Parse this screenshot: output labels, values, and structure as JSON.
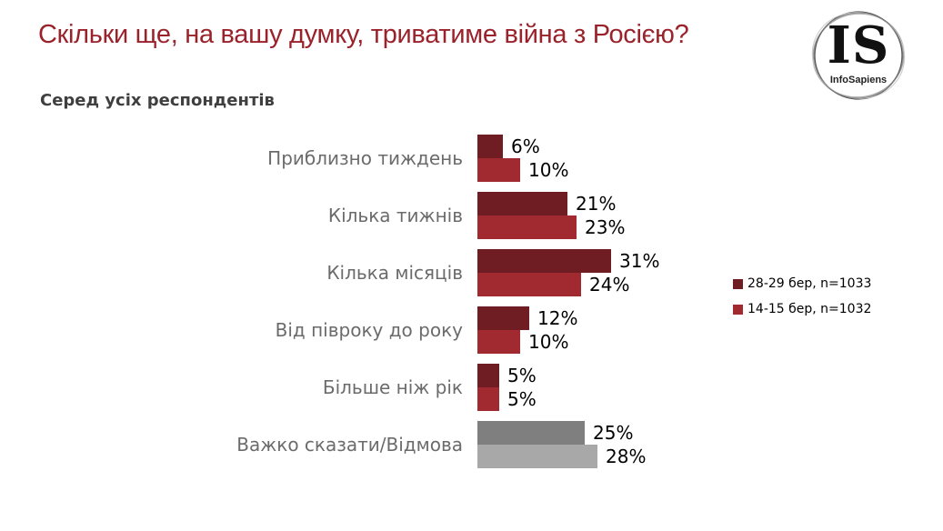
{
  "page": {
    "title": "Скільки ще, на вашу думку, триватиме війна з Росією?",
    "subtitle": "Серед усіх респондентів",
    "background_color": "#FFFFFF",
    "title_color": "#9A222B"
  },
  "logo": {
    "initials": "IS",
    "name": "InfoSapiens"
  },
  "legend": {
    "items": [
      {
        "label": "28-29 бер, n=1033",
        "color": "#701C23"
      },
      {
        "label": "14-15 бер, n=1032",
        "color": "#A02A30"
      }
    ]
  },
  "chart_data": {
    "type": "bar",
    "orientation": "horizontal",
    "title": "Скільки ще, на вашу думку, триватиме війна з Росією?",
    "subtitle": "Серед усіх респондентів",
    "value_suffix": "%",
    "grid": false,
    "legend_position": "right",
    "xlim": [
      0,
      35
    ],
    "categories": [
      "Приблизно тиждень",
      "Кілька тижнів",
      "Кілька місяців",
      "Від півроку до року",
      "Більше ніж рік",
      "Важко сказати/Відмова"
    ],
    "series": [
      {
        "name": "28-29 бер, n=1033",
        "color": "#701C23",
        "values": [
          6,
          21,
          31,
          12,
          5,
          25
        ]
      },
      {
        "name": "14-15 бер, n=1032",
        "color": "#A02A30",
        "values": [
          10,
          23,
          24,
          10,
          5,
          28
        ]
      }
    ],
    "row_color_overrides": {
      "5": [
        "#7F7F7F",
        "#A8A8A8"
      ]
    }
  }
}
